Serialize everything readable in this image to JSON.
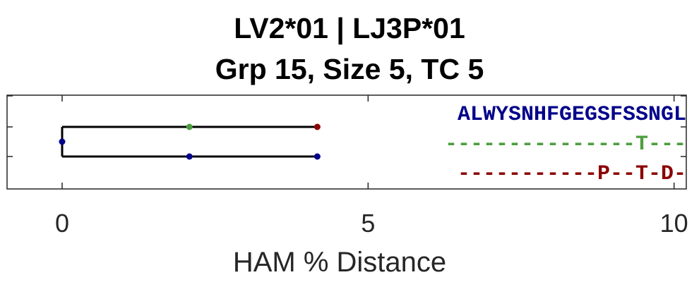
{
  "title_line1": "LV2*01 | LJ3P*01",
  "title_line2": "Grp 15, Size 5, TC 5",
  "chart_data": {
    "type": "dendrogram",
    "xlabel": "HAM % Distance",
    "xlim": [
      -0.9,
      10.2
    ],
    "xticks": [
      0,
      5,
      10
    ],
    "rows": 3,
    "links": [
      {
        "x": 0.0,
        "from_row": 2,
        "to_row": 3
      },
      {
        "x_start": 0.0,
        "x_end": 4.17,
        "row": 2
      },
      {
        "x_start": 0.0,
        "x_end": 4.17,
        "row": 3
      }
    ],
    "points": [
      {
        "x": 0.0,
        "row": 2.5,
        "color": "#00008b"
      },
      {
        "x": 2.08,
        "row": 2,
        "color": "#4d9e3f"
      },
      {
        "x": 4.17,
        "row": 2,
        "color": "#8b0000"
      },
      {
        "x": 2.08,
        "row": 3,
        "color": "#00008b"
      },
      {
        "x": 4.17,
        "row": 3,
        "color": "#00008b"
      }
    ],
    "sequences": [
      {
        "text": "ALWYSNHFGEGSFSSNGL",
        "color": "#00008b"
      },
      {
        "text": "---------------T---",
        "color": "#4d9e3f"
      },
      {
        "text": "-----------P--T-D-",
        "color": "#8b0000"
      }
    ]
  }
}
